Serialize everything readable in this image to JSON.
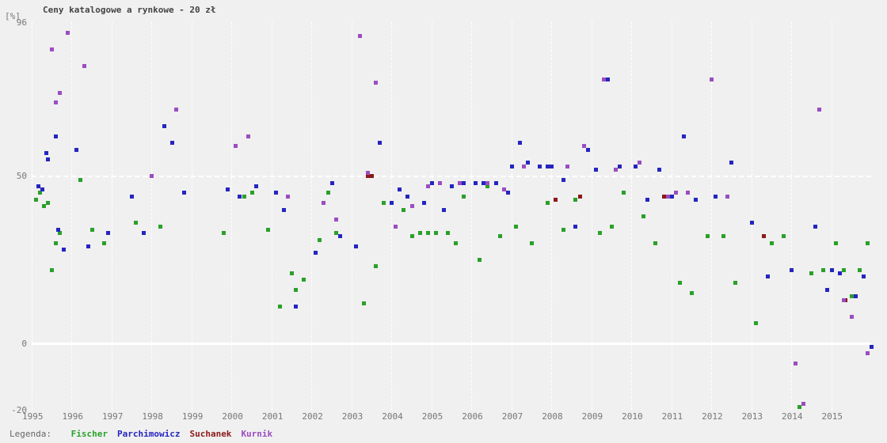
{
  "title": "Ceny katalogowe a rynkowe - 20 zł",
  "ylabel_unit": "[%]",
  "legend_label": "Legenda:",
  "type": "scatter",
  "background_color": "#f0f0f0",
  "grid_color": "#ffffff",
  "text_color": "#666666",
  "title_fontsize": 11,
  "label_fontsize": 11,
  "font_family": "monospace",
  "marker_style": "square",
  "marker_size": 5,
  "xlim": [
    1995,
    2016
  ],
  "ylim": [
    -20,
    96
  ],
  "yticks": [
    -20,
    0,
    50,
    96
  ],
  "xticks": [
    1995,
    1996,
    1997,
    1998,
    1999,
    2000,
    2001,
    2002,
    2003,
    2004,
    2005,
    2006,
    2007,
    2008,
    2009,
    2010,
    2011,
    2012,
    2013,
    2014,
    2015
  ],
  "series": [
    {
      "name": "Fischer",
      "color": "#2aa02a",
      "points": [
        [
          1995.1,
          43
        ],
        [
          1995.2,
          45
        ],
        [
          1995.3,
          41
        ],
        [
          1995.4,
          42
        ],
        [
          1995.5,
          22
        ],
        [
          1995.6,
          30
        ],
        [
          1995.7,
          33
        ],
        [
          1996.2,
          49
        ],
        [
          1996.5,
          34
        ],
        [
          1996.8,
          30
        ],
        [
          1997.6,
          36
        ],
        [
          1998.2,
          35
        ],
        [
          1999.8,
          33
        ],
        [
          2000.3,
          44
        ],
        [
          2000.5,
          45
        ],
        [
          2000.9,
          34
        ],
        [
          2001.2,
          11
        ],
        [
          2001.5,
          21
        ],
        [
          2001.6,
          16
        ],
        [
          2001.8,
          19
        ],
        [
          2002.2,
          31
        ],
        [
          2002.4,
          45
        ],
        [
          2002.6,
          33
        ],
        [
          2003.3,
          12
        ],
        [
          2003.6,
          23
        ],
        [
          2003.8,
          42
        ],
        [
          2004.1,
          35
        ],
        [
          2004.3,
          40
        ],
        [
          2004.5,
          32
        ],
        [
          2004.7,
          33
        ],
        [
          2004.9,
          33
        ],
        [
          2005.1,
          33
        ],
        [
          2005.4,
          33
        ],
        [
          2005.6,
          30
        ],
        [
          2005.8,
          44
        ],
        [
          2006.2,
          25
        ],
        [
          2006.4,
          47
        ],
        [
          2006.7,
          32
        ],
        [
          2007.1,
          35
        ],
        [
          2007.5,
          30
        ],
        [
          2007.9,
          42
        ],
        [
          2008.3,
          34
        ],
        [
          2008.6,
          43
        ],
        [
          2009.2,
          33
        ],
        [
          2009.5,
          35
        ],
        [
          2009.8,
          45
        ],
        [
          2010.3,
          38
        ],
        [
          2010.6,
          30
        ],
        [
          2010.9,
          44
        ],
        [
          2011.2,
          18
        ],
        [
          2011.5,
          15
        ],
        [
          2011.9,
          32
        ],
        [
          2012.3,
          32
        ],
        [
          2012.6,
          18
        ],
        [
          2013.1,
          6
        ],
        [
          2013.5,
          30
        ],
        [
          2013.8,
          32
        ],
        [
          2014.2,
          -19
        ],
        [
          2014.5,
          21
        ],
        [
          2014.8,
          22
        ],
        [
          2015.1,
          30
        ],
        [
          2015.3,
          22
        ],
        [
          2015.5,
          14
        ],
        [
          2015.7,
          22
        ],
        [
          2015.9,
          30
        ]
      ]
    },
    {
      "name": "Parchimowicz",
      "color": "#2525c0",
      "points": [
        [
          1995.15,
          47
        ],
        [
          1995.25,
          46
        ],
        [
          1995.35,
          57
        ],
        [
          1995.4,
          55
        ],
        [
          1995.6,
          62
        ],
        [
          1995.65,
          34
        ],
        [
          1995.8,
          28
        ],
        [
          1996.1,
          58
        ],
        [
          1996.4,
          29
        ],
        [
          1996.9,
          33
        ],
        [
          1997.5,
          44
        ],
        [
          1997.8,
          33
        ],
        [
          1998.3,
          65
        ],
        [
          1998.5,
          60
        ],
        [
          1998.8,
          45
        ],
        [
          1999.9,
          46
        ],
        [
          2000.2,
          44
        ],
        [
          2000.6,
          47
        ],
        [
          2001.1,
          45
        ],
        [
          2001.3,
          40
        ],
        [
          2001.6,
          11
        ],
        [
          2002.1,
          27
        ],
        [
          2002.5,
          48
        ],
        [
          2002.7,
          32
        ],
        [
          2003.1,
          29
        ],
        [
          2003.5,
          50
        ],
        [
          2003.7,
          60
        ],
        [
          2004.0,
          42
        ],
        [
          2004.2,
          46
        ],
        [
          2004.4,
          44
        ],
        [
          2004.8,
          42
        ],
        [
          2005.0,
          48
        ],
        [
          2005.3,
          40
        ],
        [
          2005.5,
          47
        ],
        [
          2005.8,
          48
        ],
        [
          2006.1,
          48
        ],
        [
          2006.3,
          48
        ],
        [
          2006.6,
          48
        ],
        [
          2006.9,
          45
        ],
        [
          2007.0,
          53
        ],
        [
          2007.2,
          60
        ],
        [
          2007.4,
          54
        ],
        [
          2007.7,
          53
        ],
        [
          2007.9,
          53
        ],
        [
          2008.0,
          53
        ],
        [
          2008.3,
          49
        ],
        [
          2008.6,
          35
        ],
        [
          2008.9,
          58
        ],
        [
          2009.1,
          52
        ],
        [
          2009.4,
          79
        ],
        [
          2009.7,
          53
        ],
        [
          2010.1,
          53
        ],
        [
          2010.4,
          43
        ],
        [
          2010.7,
          52
        ],
        [
          2011.0,
          44
        ],
        [
          2011.3,
          62
        ],
        [
          2011.6,
          43
        ],
        [
          2012.1,
          44
        ],
        [
          2012.5,
          54
        ],
        [
          2013.0,
          36
        ],
        [
          2013.4,
          20
        ],
        [
          2014.0,
          22
        ],
        [
          2014.6,
          35
        ],
        [
          2014.9,
          16
        ],
        [
          2015.0,
          22
        ],
        [
          2015.2,
          21
        ],
        [
          2015.6,
          14
        ],
        [
          2015.8,
          20
        ],
        [
          2016.0,
          -1
        ]
      ]
    },
    {
      "name": "Suchanek",
      "color": "#8b1a1a",
      "points": [
        [
          2003.4,
          50
        ],
        [
          2003.5,
          50
        ],
        [
          2008.1,
          43
        ],
        [
          2008.7,
          44
        ],
        [
          2010.8,
          44
        ],
        [
          2013.3,
          32
        ],
        [
          2015.35,
          13
        ]
      ]
    },
    {
      "name": "Kurnik",
      "color": "#9a4dc0",
      "points": [
        [
          1995.5,
          88
        ],
        [
          1995.6,
          72
        ],
        [
          1995.7,
          75
        ],
        [
          1995.9,
          93
        ],
        [
          1996.3,
          83
        ],
        [
          1998.0,
          50
        ],
        [
          1998.6,
          70
        ],
        [
          2000.1,
          59
        ],
        [
          2000.4,
          62
        ],
        [
          2001.4,
          44
        ],
        [
          2002.3,
          42
        ],
        [
          2002.6,
          37
        ],
        [
          2003.2,
          92
        ],
        [
          2003.4,
          51
        ],
        [
          2003.6,
          78
        ],
        [
          2004.1,
          35
        ],
        [
          2004.5,
          41
        ],
        [
          2004.9,
          47
        ],
        [
          2005.2,
          48
        ],
        [
          2005.7,
          48
        ],
        [
          2006.4,
          48
        ],
        [
          2006.8,
          46
        ],
        [
          2007.3,
          53
        ],
        [
          2008.4,
          53
        ],
        [
          2008.8,
          59
        ],
        [
          2009.3,
          79
        ],
        [
          2009.6,
          52
        ],
        [
          2010.2,
          54
        ],
        [
          2010.9,
          44
        ],
        [
          2011.1,
          45
        ],
        [
          2011.4,
          45
        ],
        [
          2012.0,
          79
        ],
        [
          2012.4,
          44
        ],
        [
          2014.1,
          -6
        ],
        [
          2014.3,
          -18
        ],
        [
          2014.7,
          70
        ],
        [
          2015.3,
          13
        ],
        [
          2015.5,
          8
        ],
        [
          2015.9,
          -3
        ]
      ]
    }
  ]
}
